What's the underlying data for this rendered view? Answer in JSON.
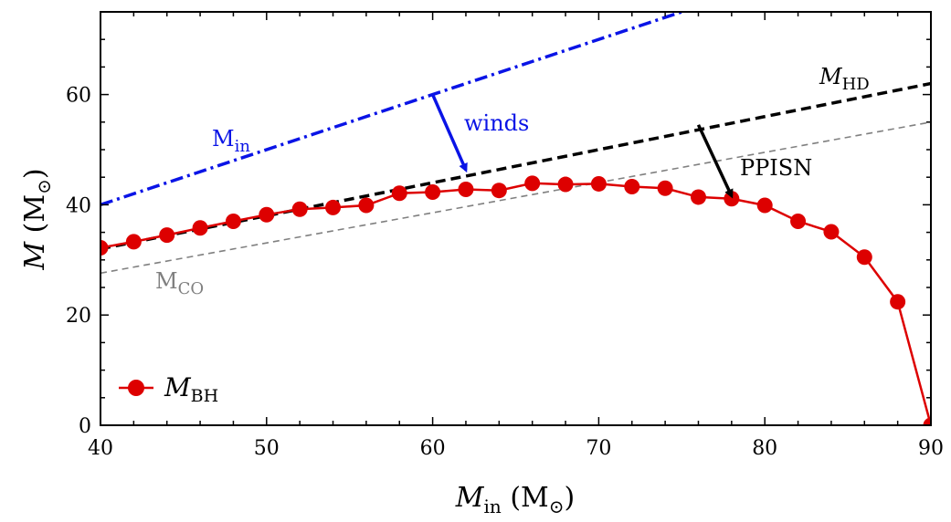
{
  "chart_data": {
    "type": "line",
    "title": "",
    "xlabel": {
      "symbol": "M",
      "sub": "in",
      "unit": "(M",
      "unit_sub": "⊙",
      "unit_close": ")"
    },
    "ylabel": {
      "symbol": "M",
      "unit": "(M",
      "unit_sub": "⊙",
      "unit_close": ")"
    },
    "xlim": [
      40,
      90
    ],
    "ylim": [
      0,
      75
    ],
    "xticks": [
      40,
      50,
      60,
      70,
      80,
      90
    ],
    "yticks": [
      0,
      20,
      40,
      60
    ],
    "grid": false,
    "legend_position": "bottom-left",
    "series": [
      {
        "name": "BH",
        "legend_label": {
          "symbol": "M",
          "sub": "BH"
        },
        "color": "#dd0000",
        "style": "solid-markers",
        "x": [
          40,
          42,
          44,
          46,
          48,
          50,
          52,
          54,
          56,
          58,
          60,
          62,
          64,
          66,
          68,
          70,
          72,
          74,
          76,
          78,
          80,
          82,
          84,
          86,
          88,
          90
        ],
        "y": [
          32.2,
          33.3,
          34.5,
          35.8,
          37.0,
          38.2,
          39.2,
          39.5,
          39.9,
          42.1,
          42.3,
          42.8,
          42.6,
          43.9,
          43.7,
          43.8,
          43.3,
          43.0,
          41.4,
          41.1,
          39.9,
          37.0,
          35.1,
          30.5,
          22.4,
          0
        ]
      },
      {
        "name": "in",
        "color": "#0a14e6",
        "style": "dashdot",
        "x": [
          40,
          75
        ],
        "y": [
          40,
          75
        ]
      },
      {
        "name": "HD",
        "color": "#000000",
        "style": "dashed",
        "x": [
          40,
          90
        ],
        "y": [
          32,
          62
        ]
      },
      {
        "name": "CO",
        "color": "#808080",
        "style": "dashed-thin",
        "x": [
          40,
          90
        ],
        "y": [
          27.6,
          55
        ]
      }
    ],
    "annotations": [
      {
        "text": "winds",
        "color": "#0a14e6",
        "arrow_from": [
          60,
          60
        ],
        "arrow_to": [
          62,
          46.3
        ]
      },
      {
        "text": "PPISN",
        "color": "#000000",
        "arrow_from": [
          76,
          54.5
        ],
        "arrow_to": [
          78,
          41.6
        ]
      }
    ],
    "curve_labels": [
      {
        "symbol": "M",
        "sub": "in",
        "color": "#0a14e6",
        "italic": false
      },
      {
        "symbol": "M",
        "sub": "HD",
        "color": "#000000",
        "italic": true
      },
      {
        "symbol": "M",
        "sub": "CO",
        "color": "#808080",
        "italic": false
      }
    ],
    "colors": {
      "bh": "#dd0000",
      "in": "#0a14e6",
      "hd": "#000000",
      "co": "#808080"
    }
  }
}
